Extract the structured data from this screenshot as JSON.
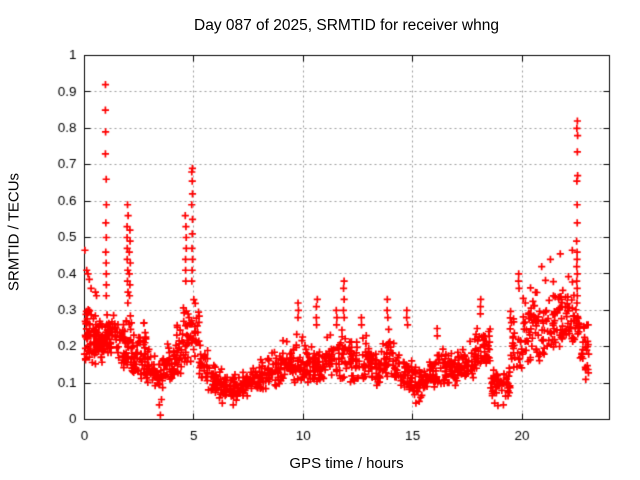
{
  "chart_data": {
    "type": "scatter",
    "title": "Day 087 of 2025, SRMTID for receiver whng",
    "xlabel": "GPS time / hours",
    "ylabel": "SRMTID / TECUs",
    "xlim": [
      0,
      24
    ],
    "ylim": [
      0,
      1
    ],
    "grid": true,
    "legend": "none",
    "marker": "plus",
    "marker_color": "#ff0000",
    "grid_color": "#9c9c9c",
    "axis_color": "#000000",
    "xticks": [
      {
        "v": 0,
        "label": "0"
      },
      {
        "v": 5,
        "label": "5"
      },
      {
        "v": 10,
        "label": "10"
      },
      {
        "v": 15,
        "label": "15"
      },
      {
        "v": 20,
        "label": "20"
      }
    ],
    "yticks": [
      {
        "v": 0,
        "label": "0"
      },
      {
        "v": 0.1,
        "label": "0.1"
      },
      {
        "v": 0.2,
        "label": "0.2"
      },
      {
        "v": 0.3,
        "label": "0.3"
      },
      {
        "v": 0.4,
        "label": "0.4"
      },
      {
        "v": 0.5,
        "label": "0.5"
      },
      {
        "v": 0.6,
        "label": "0.6"
      },
      {
        "v": 0.7,
        "label": "0.7"
      },
      {
        "v": 0.8,
        "label": "0.8"
      },
      {
        "v": 0.9,
        "label": "0.9"
      },
      {
        "v": 1,
        "label": "1"
      }
    ],
    "density_bins": [
      [
        0.0,
        0.3,
        0.14,
        0.36,
        40
      ],
      [
        0.3,
        0.65,
        0.15,
        0.33,
        34
      ],
      [
        0.65,
        0.95,
        0.15,
        0.3,
        30
      ],
      [
        0.95,
        1.1,
        0.18,
        0.32,
        16
      ],
      [
        1.1,
        1.55,
        0.17,
        0.31,
        30
      ],
      [
        1.55,
        1.95,
        0.14,
        0.28,
        30
      ],
      [
        1.95,
        2.15,
        0.13,
        0.3,
        16
      ],
      [
        2.15,
        2.55,
        0.11,
        0.24,
        30
      ],
      [
        2.55,
        2.85,
        0.11,
        0.28,
        26
      ],
      [
        2.85,
        3.25,
        0.09,
        0.2,
        30
      ],
      [
        3.25,
        3.65,
        0.08,
        0.18,
        28
      ],
      [
        3.65,
        4.05,
        0.1,
        0.22,
        28
      ],
      [
        4.05,
        4.45,
        0.11,
        0.27,
        28
      ],
      [
        4.45,
        4.75,
        0.14,
        0.33,
        24
      ],
      [
        4.75,
        5.25,
        0.14,
        0.35,
        32
      ],
      [
        5.25,
        5.65,
        0.09,
        0.22,
        28
      ],
      [
        5.65,
        6.05,
        0.07,
        0.16,
        28
      ],
      [
        6.05,
        6.55,
        0.055,
        0.14,
        32
      ],
      [
        6.55,
        7.05,
        0.05,
        0.13,
        32
      ],
      [
        7.05,
        7.55,
        0.06,
        0.15,
        32
      ],
      [
        7.55,
        8.05,
        0.08,
        0.17,
        32
      ],
      [
        8.05,
        8.55,
        0.08,
        0.19,
        32
      ],
      [
        8.55,
        9.05,
        0.09,
        0.2,
        32
      ],
      [
        9.05,
        9.55,
        0.1,
        0.22,
        32
      ],
      [
        9.55,
        10.05,
        0.1,
        0.24,
        32
      ],
      [
        10.05,
        10.55,
        0.1,
        0.22,
        32
      ],
      [
        10.55,
        11.05,
        0.1,
        0.22,
        32
      ],
      [
        11.05,
        11.55,
        0.11,
        0.25,
        30
      ],
      [
        11.55,
        12.05,
        0.11,
        0.27,
        28
      ],
      [
        12.05,
        12.55,
        0.1,
        0.24,
        30
      ],
      [
        12.55,
        13.05,
        0.1,
        0.26,
        30
      ],
      [
        13.05,
        13.55,
        0.09,
        0.22,
        30
      ],
      [
        13.55,
        14.15,
        0.1,
        0.26,
        32
      ],
      [
        14.15,
        14.65,
        0.08,
        0.2,
        30
      ],
      [
        14.65,
        15.05,
        0.07,
        0.18,
        28
      ],
      [
        15.05,
        15.55,
        0.06,
        0.16,
        30
      ],
      [
        15.55,
        16.05,
        0.08,
        0.18,
        30
      ],
      [
        16.05,
        16.55,
        0.09,
        0.21,
        30
      ],
      [
        16.55,
        17.05,
        0.09,
        0.2,
        30
      ],
      [
        17.05,
        17.55,
        0.1,
        0.22,
        30
      ],
      [
        17.55,
        18.05,
        0.11,
        0.26,
        30
      ],
      [
        18.05,
        18.55,
        0.12,
        0.3,
        30
      ],
      [
        18.55,
        19.05,
        0.06,
        0.16,
        26
      ],
      [
        19.05,
        19.45,
        0.05,
        0.15,
        24
      ],
      [
        19.45,
        20.05,
        0.12,
        0.32,
        30
      ],
      [
        20.05,
        20.55,
        0.15,
        0.38,
        30
      ],
      [
        20.55,
        21.05,
        0.15,
        0.38,
        30
      ],
      [
        21.05,
        21.55,
        0.18,
        0.4,
        30
      ],
      [
        21.55,
        22.05,
        0.18,
        0.42,
        30
      ],
      [
        22.05,
        22.45,
        0.2,
        0.44,
        26
      ],
      [
        22.45,
        22.65,
        0.2,
        0.35,
        14
      ],
      [
        22.65,
        23.05,
        0.1,
        0.3,
        26
      ]
    ],
    "spike_columns": [
      {
        "x": 0.98,
        "ys": [
          0.92,
          0.85,
          0.79,
          0.73,
          0.66,
          0.59,
          0.54,
          0.5,
          0.46,
          0.43,
          0.4,
          0.37,
          0.34
        ]
      },
      {
        "x": 1.97,
        "ys": [
          0.59,
          0.56,
          0.53,
          0.5,
          0.47,
          0.44,
          0.41,
          0.38,
          0.35,
          0.32
        ]
      },
      {
        "x": 2.07,
        "ys": [
          0.52,
          0.49,
          0.46,
          0.43,
          0.4,
          0.37,
          0.34
        ]
      },
      {
        "x": 4.63,
        "ys": [
          0.56,
          0.53,
          0.5,
          0.47,
          0.44,
          0.41,
          0.38
        ]
      },
      {
        "x": 4.92,
        "ys": [
          0.69,
          0.68,
          0.655,
          0.62,
          0.59,
          0.55,
          0.51,
          0.47,
          0.44,
          0.41,
          0.38
        ]
      },
      {
        "x": 9.78,
        "ys": [
          0.32,
          0.3,
          0.28
        ]
      },
      {
        "x": 10.62,
        "ys": [
          0.33,
          0.31,
          0.28,
          0.26
        ]
      },
      {
        "x": 11.52,
        "ys": [
          0.3,
          0.28,
          0.26
        ]
      },
      {
        "x": 11.85,
        "ys": [
          0.38,
          0.36,
          0.33,
          0.3,
          0.28
        ]
      },
      {
        "x": 12.68,
        "ys": [
          0.28,
          0.26
        ]
      },
      {
        "x": 13.85,
        "ys": [
          0.33,
          0.3,
          0.28
        ]
      },
      {
        "x": 14.75,
        "ys": [
          0.3,
          0.28,
          0.26
        ]
      },
      {
        "x": 16.12,
        "ys": [
          0.25,
          0.23
        ]
      },
      {
        "x": 18.12,
        "ys": [
          0.33,
          0.31,
          0.29
        ]
      },
      {
        "x": 19.85,
        "ys": [
          0.4,
          0.38,
          0.36
        ]
      },
      {
        "x": 22.52,
        "ys": [
          0.82,
          0.8,
          0.78,
          0.735,
          0.67,
          0.655,
          0.59,
          0.54,
          0.49,
          0.46,
          0.44,
          0.42,
          0.4,
          0.38,
          0.36,
          0.34,
          0.32
        ]
      }
    ],
    "outlier_points": [
      [
        0.02,
        0.465
      ],
      [
        0.1,
        0.41
      ],
      [
        0.16,
        0.4
      ],
      [
        0.22,
        0.385
      ],
      [
        0.3,
        0.36
      ],
      [
        0.5,
        0.35
      ],
      [
        0.55,
        0.34
      ],
      [
        3.47,
        0.012
      ],
      [
        3.42,
        0.04
      ],
      [
        3.52,
        0.055
      ],
      [
        6.3,
        0.045
      ],
      [
        6.8,
        0.04
      ],
      [
        15.15,
        0.045
      ],
      [
        15.3,
        0.05
      ],
      [
        18.75,
        0.045
      ],
      [
        18.9,
        0.038
      ],
      [
        19.15,
        0.04
      ],
      [
        20.9,
        0.42
      ],
      [
        21.3,
        0.44
      ],
      [
        21.75,
        0.455
      ],
      [
        22.3,
        0.465
      ]
    ]
  }
}
